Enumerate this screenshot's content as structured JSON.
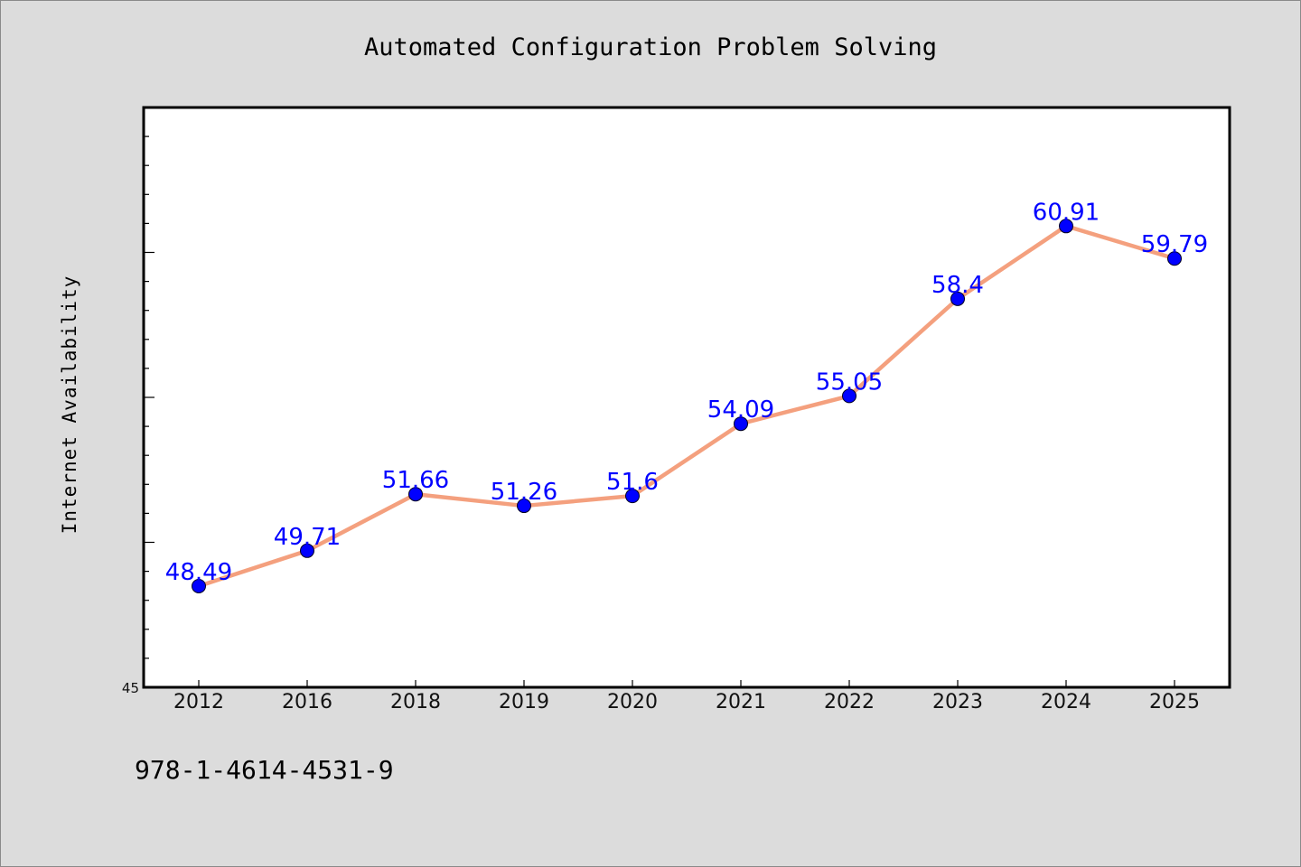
{
  "chart_data": {
    "type": "line",
    "title": "Automated Configuration Problem Solving",
    "xlabel": "",
    "ylabel": "Internet Availability",
    "categories": [
      "2012",
      "2016",
      "2018",
      "2019",
      "2020",
      "2021",
      "2022",
      "2023",
      "2024",
      "2025"
    ],
    "series": [
      {
        "values": [
          48.49,
          49.71,
          51.66,
          51.26,
          51.6,
          54.09,
          55.05,
          58.4,
          60.91,
          59.79
        ],
        "labels": [
          "48.49",
          "49.71",
          "51.66",
          "51.26",
          "51.6",
          "54.09",
          "55.05",
          "58.4",
          "60.91",
          "59.79"
        ]
      }
    ],
    "ylim": [
      45,
      65
    ],
    "y_tick_labels": [
      "45"
    ],
    "grid": false,
    "legend": "none",
    "colors": {
      "line": "#f4a07e",
      "marker": "#0000ff",
      "data_label": "#0000ff",
      "plot_background": "#ffffff",
      "figure_background": "#dcdcdc"
    }
  },
  "footer": {
    "isbn": "978-1-4614-4531-9"
  }
}
